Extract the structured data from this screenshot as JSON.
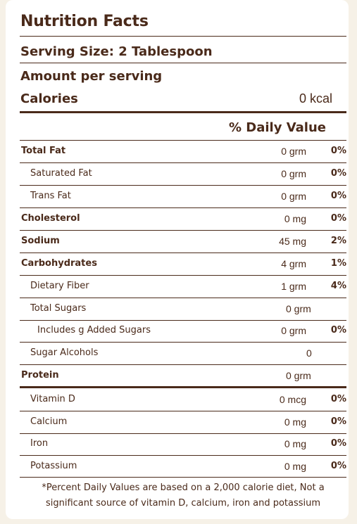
{
  "title": "Nutrition Facts",
  "serving_size": "Serving Size: 2 Tablespoon",
  "amount_per_serving": "Amount per serving",
  "calories": {
    "label": "Calories",
    "value": "0 kcal"
  },
  "daily_value_header": "% Daily Value",
  "nutrients": [
    {
      "label": "Total Fat",
      "amount": "0 grm",
      "percent": "0%"
    },
    {
      "label": "Saturated Fat",
      "amount": "0 grm",
      "percent": "0%"
    },
    {
      "label": "Trans Fat",
      "amount": "0 grm",
      "percent": "0%"
    },
    {
      "label": "Cholesterol",
      "amount": "0 mg",
      "percent": "0%"
    },
    {
      "label": "Sodium",
      "amount": "45 mg",
      "percent": "2%"
    },
    {
      "label": "Carbohydrates",
      "amount": "4 grm",
      "percent": "1%"
    },
    {
      "label": "Dietary Fiber",
      "amount": "1 grm",
      "percent": "4%"
    },
    {
      "label": "Total Sugars",
      "amount": "0 grm",
      "percent": ""
    },
    {
      "label": "Includes g Added Sugars",
      "amount": "0 grm",
      "percent": "0%"
    },
    {
      "label": "Sugar Alcohols",
      "amount": "0",
      "percent": ""
    },
    {
      "label": "Protein",
      "amount": "0 grm",
      "percent": ""
    }
  ],
  "vitamins": [
    {
      "label": "Vitamin D",
      "amount": "0 mcg",
      "percent": "0%"
    },
    {
      "label": "Calcium",
      "amount": "0 mg",
      "percent": "0%"
    },
    {
      "label": "Iron",
      "amount": "0 mg",
      "percent": "0%"
    },
    {
      "label": "Potassium",
      "amount": "0 mg",
      "percent": "0%"
    }
  ],
  "footnote_line1": "*Percent Daily Values are based on a 2,000 calorie diet, Not a",
  "footnote_line2": "significant source of vitamin D, calcium, iron and potassium",
  "colors": {
    "text": "#4a2a1a",
    "background": "#f6f1e7",
    "panel": "#ffffff"
  }
}
